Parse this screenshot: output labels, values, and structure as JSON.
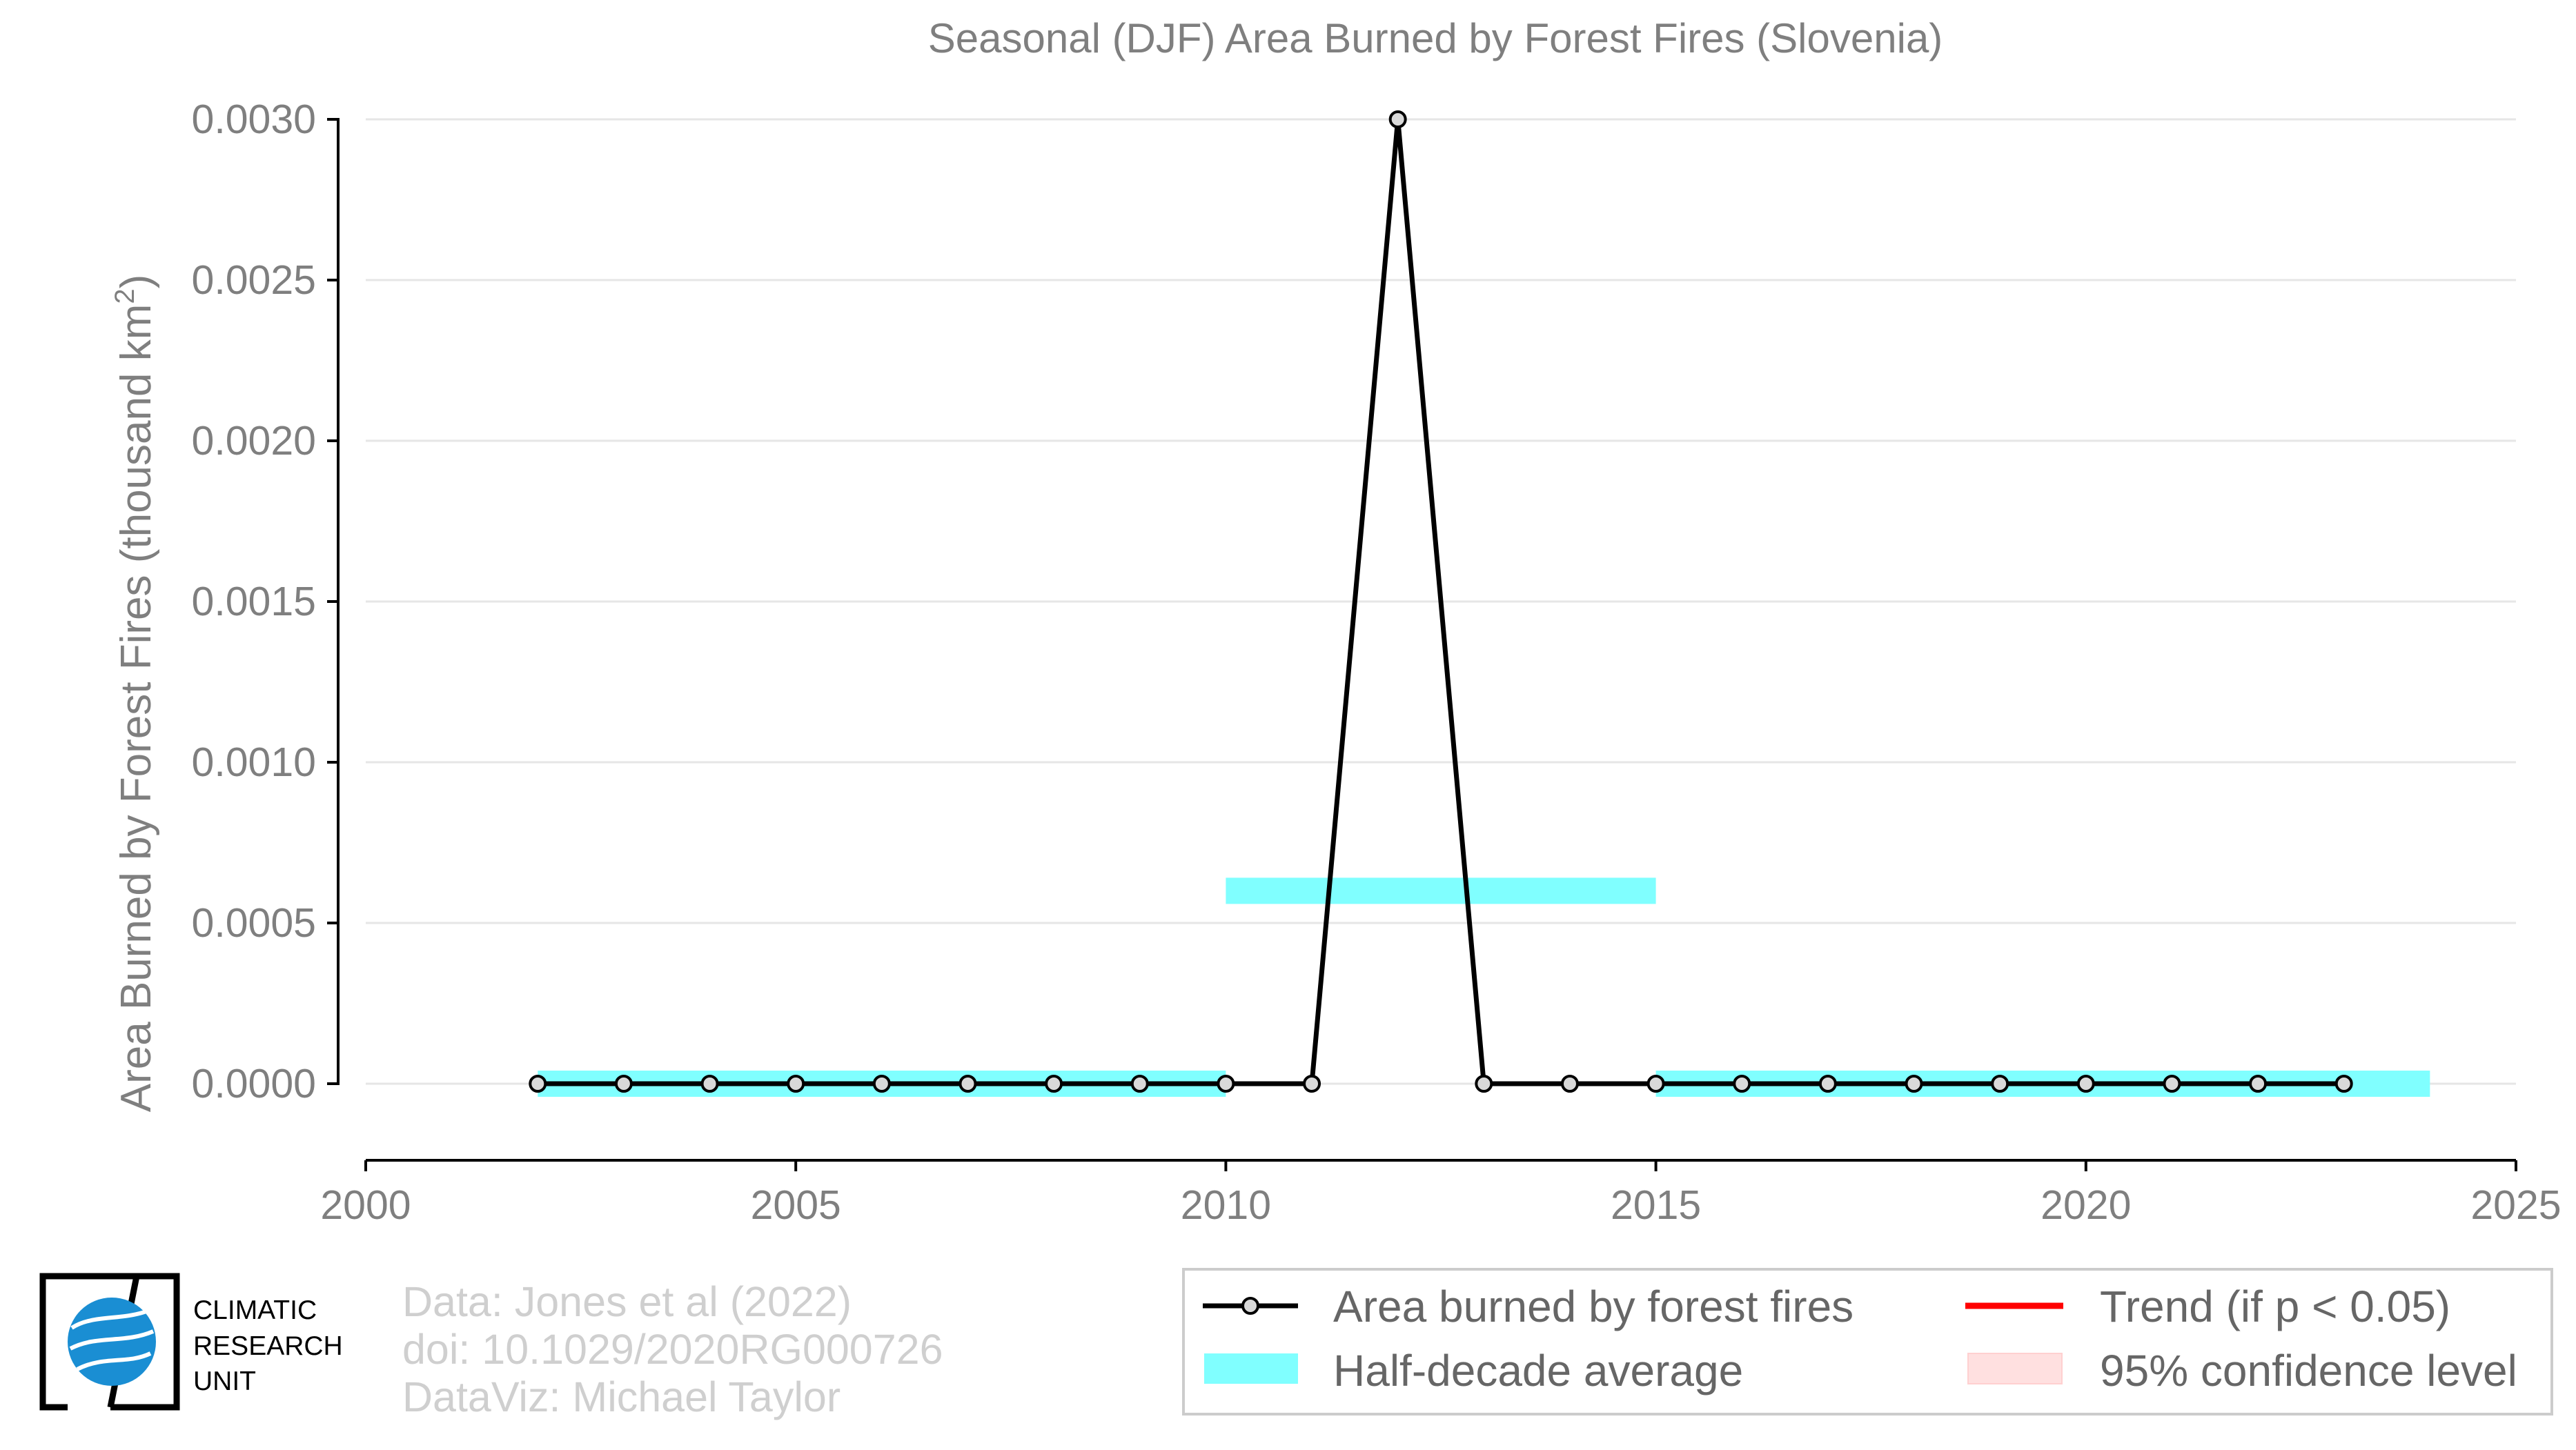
{
  "chart_data": {
    "type": "line",
    "title": "Seasonal (DJF) Area Burned by Forest Fires (Slovenia)",
    "ylabel": "Area Burned by Forest Fires (thousand km",
    "ylabel_superscript": "2",
    "ylabel_close": ")",
    "xlim": [
      2000,
      2025
    ],
    "ylim": [
      0,
      0.003
    ],
    "grid": true,
    "x_ticks": [
      2000,
      2005,
      2010,
      2015,
      2020,
      2025
    ],
    "x_tick_labels": [
      "2000",
      "2005",
      "2010",
      "2015",
      "2020",
      "2025"
    ],
    "y_ticks": [
      0,
      0.0005,
      0.001,
      0.0015,
      0.002,
      0.0025,
      0.003
    ],
    "y_tick_labels": [
      "0.0000",
      "0.0005",
      "0.0010",
      "0.0015",
      "0.0020",
      "0.0025",
      "0.0030"
    ],
    "series": [
      {
        "name": "Area burned by forest fires",
        "color": "#000000",
        "x": [
          2002,
          2003,
          2004,
          2005,
          2006,
          2007,
          2008,
          2009,
          2010,
          2011,
          2012,
          2013,
          2014,
          2015,
          2016,
          2017,
          2018,
          2019,
          2020,
          2021,
          2022,
          2023
        ],
        "values": [
          0,
          0,
          0,
          0,
          0,
          0,
          0,
          0,
          0,
          0,
          0.003,
          0,
          0,
          0,
          0,
          0,
          0,
          0,
          0,
          0,
          0,
          0
        ]
      },
      {
        "name": "Half-decade average",
        "color": "#80ffff",
        "segments": [
          {
            "x_start": 2002,
            "x_end": 2010,
            "value": 0
          },
          {
            "x_start": 2010,
            "x_end": 2015,
            "value": 0.0006
          },
          {
            "x_start": 2015,
            "x_end": 2024,
            "value": 0
          }
        ]
      }
    ],
    "legend": {
      "position": "bottom-right",
      "items": [
        {
          "label": "Area burned by forest fires",
          "kind": "line-marker",
          "color": "#000000"
        },
        {
          "label": "Trend (if p < 0.05)",
          "kind": "line",
          "color": "#ff0000"
        },
        {
          "label": "Half-decade average",
          "kind": "band",
          "color": "#80ffff"
        },
        {
          "label": "95% confidence level",
          "kind": "band",
          "color": "#ffe0e0"
        }
      ]
    }
  },
  "logo": {
    "line1": "CLIMATIC",
    "line2": "RESEARCH",
    "line3": "UNIT"
  },
  "credits": {
    "line1": "Data: Jones et al (2022)",
    "line2": "doi: 10.1029/2020RG000726",
    "line3": "DataViz: Michael Taylor"
  }
}
